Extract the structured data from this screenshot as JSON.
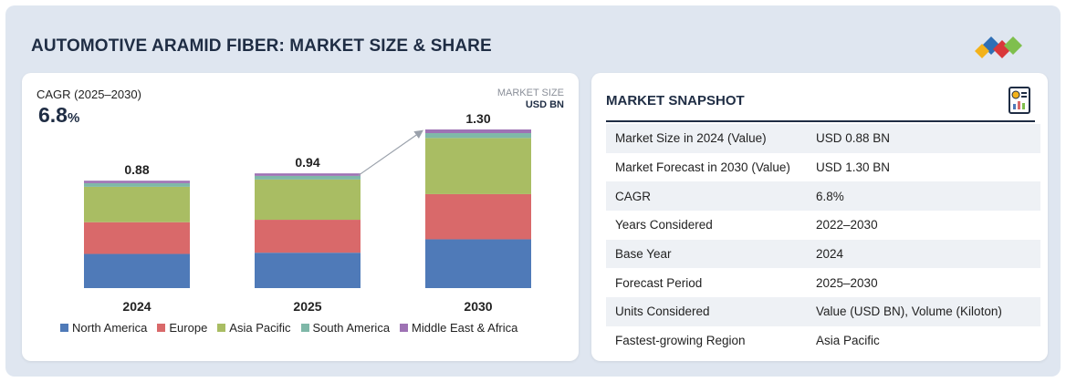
{
  "header": {
    "title": "AUTOMOTIVE ARAMID FIBER: MARKET SIZE & SHARE",
    "logo_colors": [
      "#2f6fb5",
      "#d9383a",
      "#7fbf4d",
      "#f3b21a"
    ]
  },
  "chart_panel": {
    "cagr_label": "CAGR (2025–2030)",
    "cagr_value": "6.8",
    "cagr_unit": "%",
    "unit_line1": "MARKET SIZE",
    "unit_line2": "USD BN"
  },
  "chart_data": {
    "type": "bar",
    "stacked": true,
    "categories": [
      "2024",
      "2025",
      "2030"
    ],
    "totals": [
      "0.88",
      "0.94",
      "1.30"
    ],
    "series": [
      {
        "name": "North America",
        "color": "#4f7ab8",
        "values": [
          0.28,
          0.29,
          0.4
        ]
      },
      {
        "name": "Europe",
        "color": "#d9696a",
        "values": [
          0.26,
          0.27,
          0.37
        ]
      },
      {
        "name": "Asia Pacific",
        "color": "#a9bd63",
        "values": [
          0.29,
          0.33,
          0.46
        ]
      },
      {
        "name": "South America",
        "color": "#7fb8a8",
        "values": [
          0.03,
          0.03,
          0.04
        ]
      },
      {
        "name": "Middle East & Africa",
        "color": "#9e72b4",
        "values": [
          0.02,
          0.02,
          0.03
        ]
      }
    ],
    "ylim": [
      0,
      1.3
    ],
    "legend_position": "bottom",
    "grid": false,
    "annotation": "growth arrow from 2025 to 2030"
  },
  "snapshot": {
    "title": "MARKET SNAPSHOT",
    "icon": "report-icon",
    "rows": [
      {
        "key": "Market Size in 2024 (Value)",
        "value": "USD 0.88 BN"
      },
      {
        "key": "Market Forecast in 2030 (Value)",
        "value": "USD 1.30 BN"
      },
      {
        "key": "CAGR",
        "value": "6.8%"
      },
      {
        "key": "Years Considered",
        "value": "2022–2030"
      },
      {
        "key": "Base Year",
        "value": "2024"
      },
      {
        "key": "Forecast Period",
        "value": "2025–2030"
      },
      {
        "key": "Units Considered",
        "value": "Value (USD BN), Volume (Kiloton)"
      },
      {
        "key": "Fastest-growing Region",
        "value": "Asia Pacific"
      }
    ]
  }
}
